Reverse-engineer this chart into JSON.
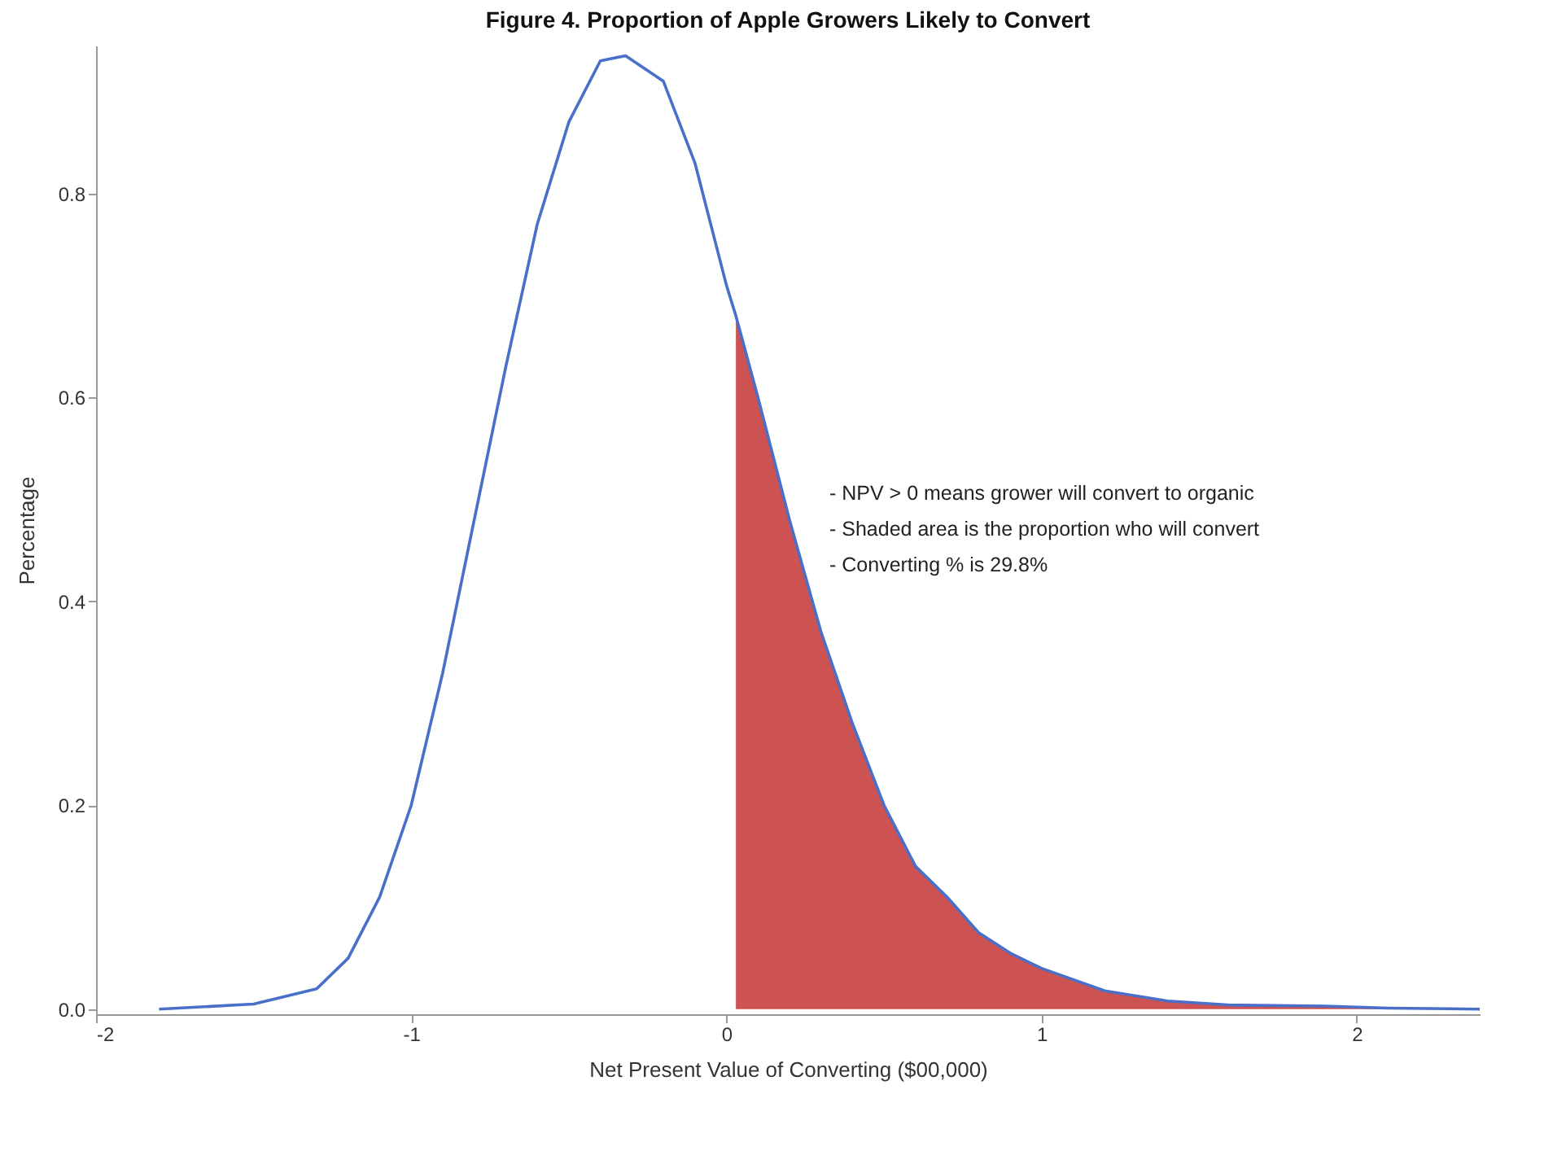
{
  "chart_data": {
    "type": "line",
    "title": "Figure 4. Proportion of Apple Growers Likely to Convert",
    "xlabel": "Net Present Value of Converting ($00,000)",
    "ylabel": "Percentage",
    "series": [
      {
        "type": "area",
        "color": "#cd5353",
        "x": [
          0.03,
          0.1,
          0.2,
          0.3,
          0.4,
          0.5,
          0.6,
          0.7,
          0.8,
          0.9,
          1.0,
          1.2,
          1.4,
          1.6,
          1.9,
          2.1,
          2.39
        ],
        "values": [
          0.68,
          0.6,
          0.48,
          0.37,
          0.28,
          0.2,
          0.14,
          0.11,
          0.075,
          0.055,
          0.04,
          0.018,
          0.008,
          0.004,
          0.003,
          0.001,
          0.0
        ]
      },
      {
        "color": "#4a6fc9",
        "x": [
          -1.8,
          -1.5,
          -1.3,
          -1.2,
          -1.1,
          -1.0,
          -0.9,
          -0.8,
          -0.7,
          -0.6,
          -0.5,
          -0.4,
          -0.32,
          -0.2,
          -0.1,
          0.0,
          0.03,
          0.1,
          0.2,
          0.3,
          0.4,
          0.5,
          0.6,
          0.7,
          0.8,
          0.9,
          1.0,
          1.2,
          1.4,
          1.6,
          1.9,
          2.1,
          2.39
        ],
        "values": [
          0.0,
          0.005,
          0.02,
          0.05,
          0.11,
          0.2,
          0.33,
          0.48,
          0.63,
          0.77,
          0.87,
          0.93,
          0.935,
          0.91,
          0.83,
          0.71,
          0.68,
          0.6,
          0.48,
          0.37,
          0.28,
          0.2,
          0.14,
          0.11,
          0.075,
          0.055,
          0.04,
          0.018,
          0.008,
          0.004,
          0.003,
          0.001,
          0.0
        ]
      }
    ],
    "xlim": [
      -2,
      2.39
    ],
    "ylim": [
      -0.005,
      0.945
    ],
    "xticks": [
      -2,
      -1,
      0,
      1,
      2
    ],
    "yticks": [
      {
        "value": 0,
        "label": "0.0"
      },
      0.2,
      0.4,
      0.6,
      0.8
    ],
    "annotations": [
      "- NPV > 0 means grower will convert to organic",
      "- Shaded area is the proportion who will convert",
      "- Converting % is 29.8%"
    ],
    "grid": false
  }
}
